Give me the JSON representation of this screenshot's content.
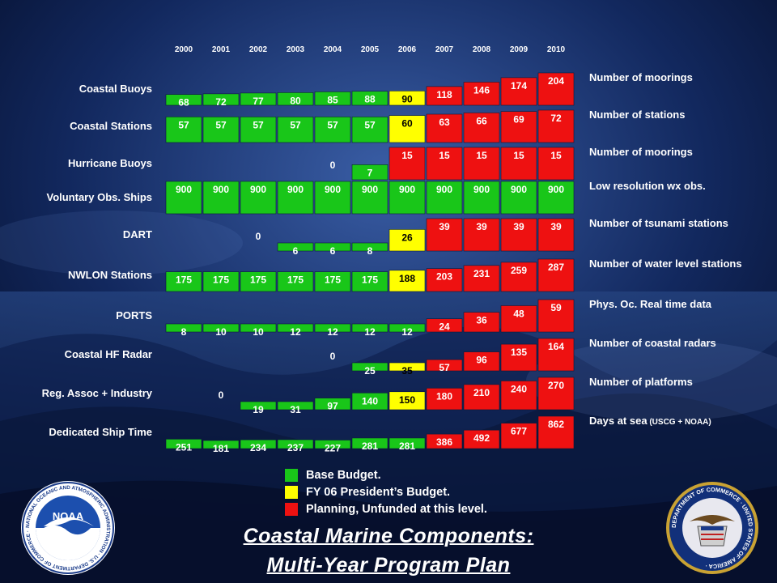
{
  "title_line1": "Coastal Marine Components:",
  "title_line2": "Multi-Year Program Plan",
  "colors": {
    "base": "#19c619",
    "fy06": "#ffff00",
    "planning": "#ee1111"
  },
  "legend": [
    {
      "key": "base",
      "label": "Base Budget."
    },
    {
      "key": "fy06",
      "label": "FY 06 President’s Budget."
    },
    {
      "key": "planning",
      "label": "Planning, Unfunded at this level."
    }
  ],
  "logos": {
    "noaa_text": "NOAA",
    "noaa_ring": "NATIONAL OCEANIC AND ATMOSPHERIC ADMINISTRATION · U.S. DEPARTMENT OF COMMERCE ·",
    "doc_ring": "DEPARTMENT OF COMMERCE · UNITED STATES OF AMERICA ·"
  },
  "chart_data": {
    "type": "table",
    "years": [
      "2000",
      "2001",
      "2002",
      "2003",
      "2004",
      "2005",
      "2006",
      "2007",
      "2008",
      "2009",
      "2010"
    ],
    "rows": [
      {
        "name": "Coastal Buoys",
        "unit": "Number of moorings",
        "values": [
          68,
          72,
          77,
          80,
          85,
          88,
          90,
          118,
          146,
          174,
          204
        ],
        "status": [
          "base",
          "base",
          "base",
          "base",
          "base",
          "base",
          "fy06",
          "planning",
          "planning",
          "planning",
          "planning"
        ]
      },
      {
        "name": "Coastal Stations",
        "unit": "Number of stations",
        "values": [
          57,
          57,
          57,
          57,
          57,
          57,
          60,
          63,
          66,
          69,
          72
        ],
        "status": [
          "base",
          "base",
          "base",
          "base",
          "base",
          "base",
          "fy06",
          "planning",
          "planning",
          "planning",
          "planning"
        ]
      },
      {
        "name": "Hurricane Buoys",
        "unit": "Number of moorings",
        "values": [
          null,
          null,
          null,
          null,
          0,
          7,
          15,
          15,
          15,
          15,
          15
        ],
        "status": [
          null,
          null,
          null,
          null,
          "base",
          "base",
          "planning",
          "planning",
          "planning",
          "planning",
          "planning"
        ]
      },
      {
        "name": "Voluntary Obs. Ships",
        "unit": "Low resolution wx obs.",
        "values": [
          900,
          900,
          900,
          900,
          900,
          900,
          900,
          900,
          900,
          900,
          900
        ],
        "status": [
          "base",
          "base",
          "base",
          "base",
          "base",
          "base",
          "base",
          "base",
          "base",
          "base",
          "base"
        ]
      },
      {
        "name": "DART",
        "unit": "Number of tsunami stations",
        "values": [
          null,
          null,
          0,
          6,
          6,
          8,
          26,
          39,
          39,
          39,
          39
        ],
        "status": [
          null,
          null,
          "base",
          "base",
          "base",
          "base",
          "fy06",
          "planning",
          "planning",
          "planning",
          "planning"
        ]
      },
      {
        "name": "NWLON Stations",
        "unit": "Number of water level stations",
        "values": [
          175,
          175,
          175,
          175,
          175,
          175,
          188,
          203,
          231,
          259,
          287
        ],
        "status": [
          "base",
          "base",
          "base",
          "base",
          "base",
          "base",
          "fy06",
          "planning",
          "planning",
          "planning",
          "planning"
        ]
      },
      {
        "name": "PORTS",
        "unit": "Phys. Oc. Real time data",
        "values": [
          8,
          10,
          10,
          12,
          12,
          12,
          12,
          24,
          36,
          48,
          59
        ],
        "status": [
          "base",
          "base",
          "base",
          "base",
          "base",
          "base",
          "base",
          "planning",
          "planning",
          "planning",
          "planning"
        ]
      },
      {
        "name": "Coastal HF Radar",
        "unit": "Number of coastal radars",
        "values": [
          null,
          null,
          null,
          null,
          0,
          25,
          35,
          57,
          96,
          135,
          164
        ],
        "status": [
          null,
          null,
          null,
          null,
          "base",
          "base",
          "fy06",
          "planning",
          "planning",
          "planning",
          "planning"
        ]
      },
      {
        "name": "Reg. Assoc + Industry",
        "unit": "Number of platforms",
        "values": [
          null,
          0,
          19,
          31,
          97,
          140,
          150,
          180,
          210,
          240,
          270
        ],
        "status": [
          null,
          "base",
          "base",
          "base",
          "base",
          "base",
          "fy06",
          "planning",
          "planning",
          "planning",
          "planning"
        ]
      },
      {
        "name": "Dedicated Ship Time",
        "unit": "Days at sea",
        "unit_note": "(USCG + NOAA)",
        "values": [
          251,
          181,
          234,
          237,
          227,
          281,
          281,
          386,
          492,
          677,
          862
        ],
        "status": [
          "base",
          "base",
          "base",
          "base",
          "base",
          "base",
          "base",
          "planning",
          "planning",
          "planning",
          "planning"
        ]
      }
    ]
  }
}
